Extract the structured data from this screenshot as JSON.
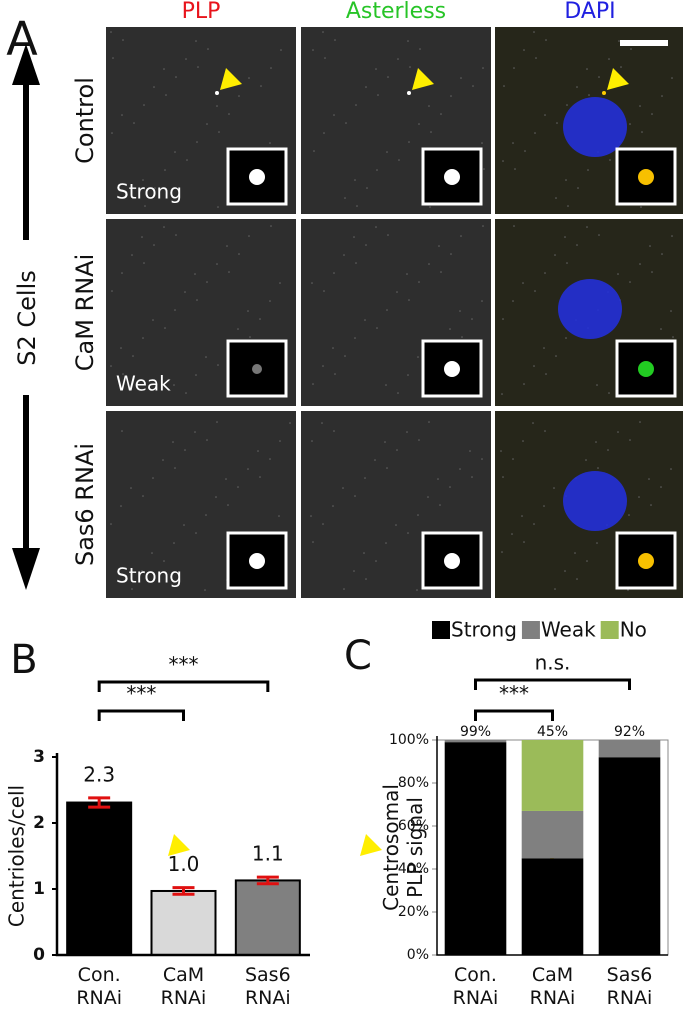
{
  "figure": {
    "panel_a": {
      "label": "A",
      "columns": [
        "PLP",
        "Asterless",
        "DAPI"
      ],
      "column_colors": [
        "#e8141c",
        "#27c427",
        "#2020e0"
      ],
      "rows": [
        "Control",
        "CaM RNAi",
        "Sas6 RNAi"
      ],
      "side_label": "S2 Cells",
      "signal_labels": [
        "Strong",
        "Weak",
        "Strong"
      ]
    },
    "panel_b_label": "B",
    "panel_c_label": "C"
  },
  "chart_data": [
    {
      "type": "bar",
      "categories": [
        "Con. RNAi",
        "CaM RNAi",
        "Sas6 RNAi"
      ],
      "ylabel": "Centrioles/cell",
      "values": [
        2.31,
        0.97,
        1.13
      ],
      "value_labels": [
        "2.3",
        "1.0",
        "1.1"
      ],
      "errors": [
        0.07,
        0.05,
        0.05
      ],
      "colors": [
        "#000000",
        "#d9d9d9",
        "#808080"
      ],
      "error_color": "#e01010",
      "ylim": [
        0,
        3
      ],
      "yticks": [
        0,
        1,
        2,
        3
      ],
      "annotations": [
        "***",
        "***"
      ]
    },
    {
      "type": "stacked_bar",
      "categories": [
        "Con. RNAi",
        "CaM RNAi",
        "Sas6 RNAi"
      ],
      "ylabel": [
        "Centrosomal",
        "PLP signal"
      ],
      "series": [
        {
          "name": "Strong",
          "color": "#000000",
          "values": [
            99,
            45,
            92
          ],
          "value_labels": [
            "99%",
            "45%",
            "92%"
          ]
        },
        {
          "name": "Weak",
          "color": "#808080",
          "values": [
            1,
            22,
            8
          ]
        },
        {
          "name": "No",
          "color": "#9bbb59",
          "values": [
            0,
            33,
            0
          ]
        }
      ],
      "ylim": [
        0,
        100
      ],
      "yticks": [
        {
          "value": 0,
          "label": "0%"
        },
        {
          "value": 20,
          "label": "20%"
        },
        {
          "value": 40,
          "label": "40%"
        },
        {
          "value": 60,
          "label": "60%"
        },
        {
          "value": 80,
          "label": "80%"
        },
        {
          "value": 100,
          "label": "100%"
        }
      ],
      "annotations": [
        "***",
        "n.s."
      ]
    }
  ]
}
